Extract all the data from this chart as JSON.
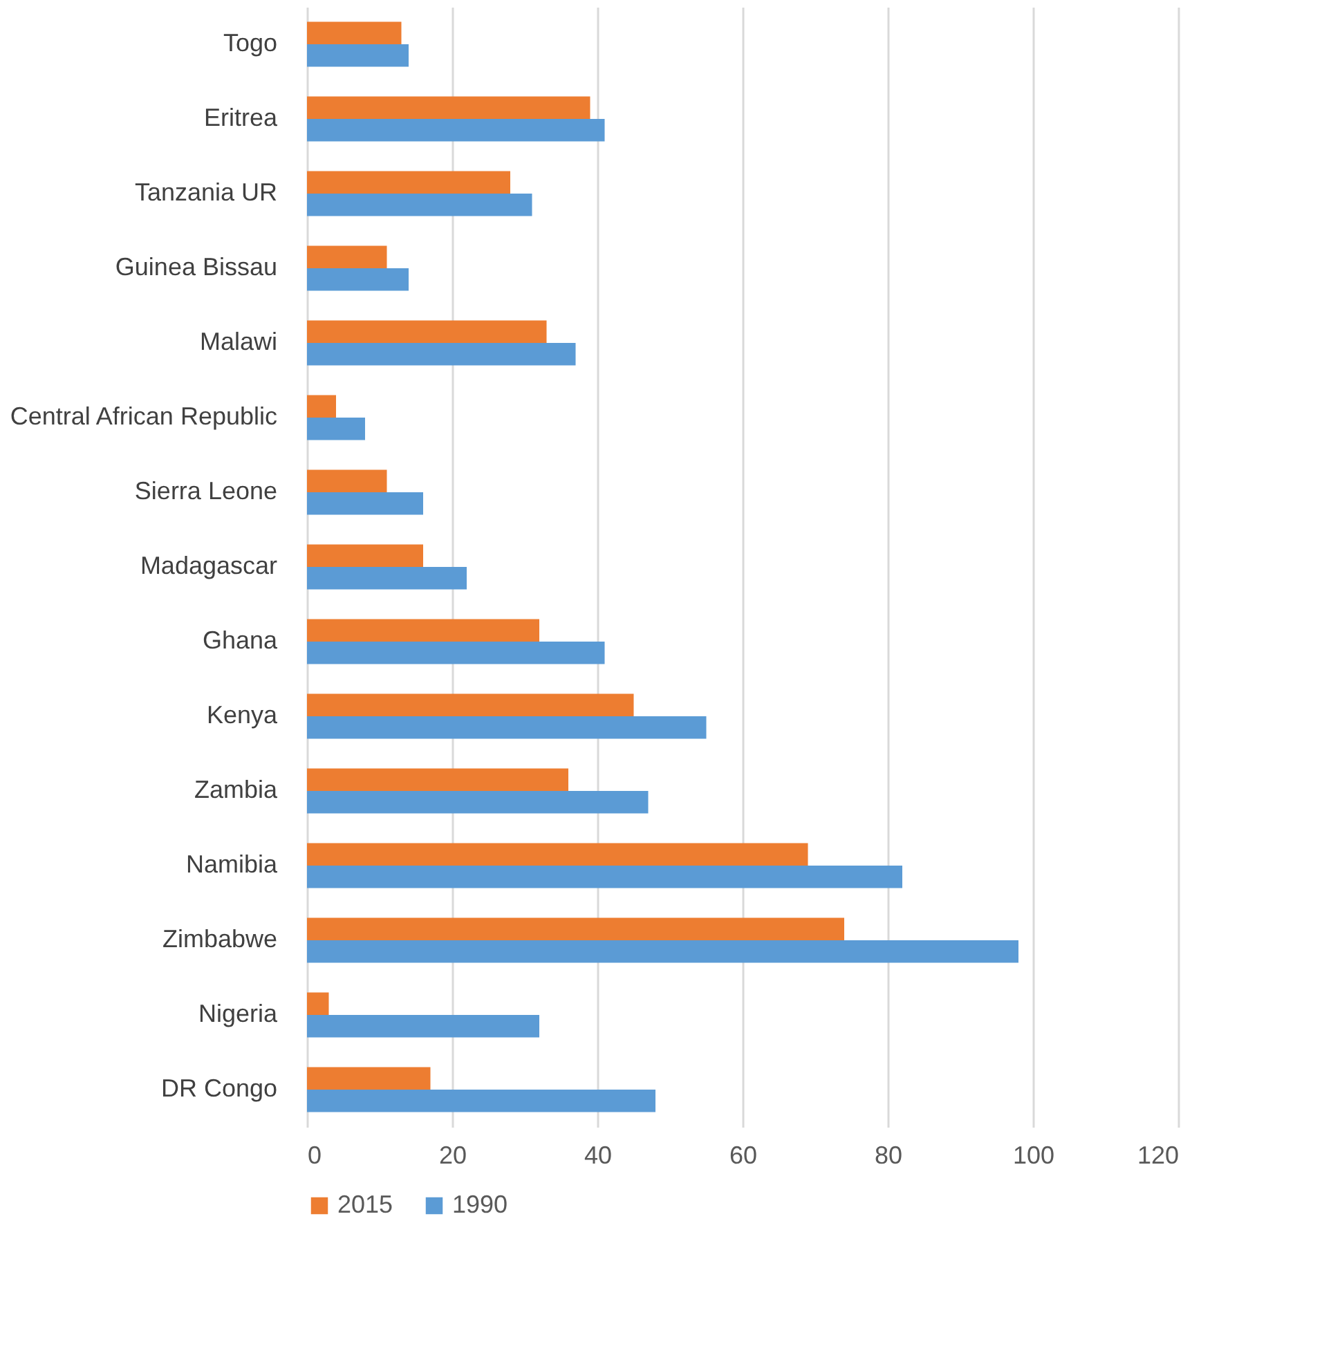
{
  "chart_data": {
    "type": "bar",
    "orientation": "horizontal",
    "categories": [
      "Togo",
      "Eritrea",
      "Tanzania UR",
      "Guinea Bissau",
      "Malawi",
      "Central African Republic",
      "Sierra Leone",
      "Madagascar",
      "Ghana",
      "Kenya",
      "Zambia",
      "Namibia",
      "Zimbabwe",
      "Nigeria",
      "DR Congo"
    ],
    "series": [
      {
        "name": "2015",
        "color": "#ed7d31",
        "values": [
          13,
          39,
          28,
          11,
          33,
          4,
          11,
          16,
          32,
          45,
          36,
          69,
          74,
          3,
          17
        ]
      },
      {
        "name": "1990",
        "color": "#5b9bd5",
        "values": [
          14,
          41,
          31,
          14,
          37,
          8,
          16,
          22,
          41,
          55,
          47,
          82,
          98,
          32,
          48
        ]
      }
    ],
    "xlim": [
      0,
      120
    ],
    "xticks": [
      0,
      20,
      40,
      60,
      80,
      100,
      120
    ],
    "grid": "x",
    "legend": "bottom"
  }
}
